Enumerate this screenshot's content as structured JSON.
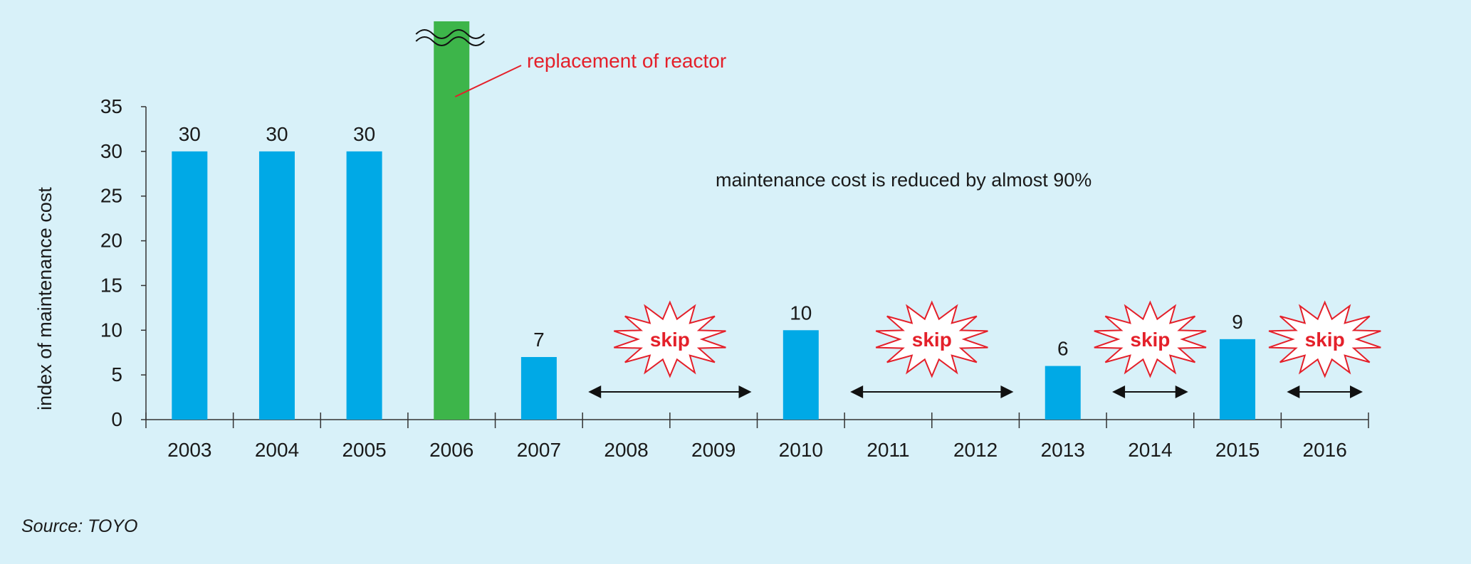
{
  "chart_data": {
    "type": "bar",
    "ylabel": "index of maintenance cost",
    "ylim": [
      0,
      35
    ],
    "yticks": [
      0,
      5,
      10,
      15,
      20,
      25,
      30,
      35
    ],
    "categories": [
      "2003",
      "2004",
      "2005",
      "2006",
      "2007",
      "2008",
      "2009",
      "2010",
      "2011",
      "2012",
      "2013",
      "2014",
      "2015",
      "2016"
    ],
    "values": [
      30,
      30,
      30,
      null,
      7,
      null,
      null,
      10,
      null,
      null,
      6,
      null,
      9,
      null
    ],
    "bar_labels": [
      "30",
      "30",
      "30",
      "",
      "7",
      "",
      "",
      "10",
      "",
      "",
      "6",
      "",
      "9",
      ""
    ],
    "broken_bar": {
      "category": "2006",
      "note": "replacement of reactor",
      "color": "#3db54a"
    },
    "bar_color": "#00a9e6",
    "skip_periods": [
      {
        "label": "skip",
        "from": "2008",
        "to": "2009"
      },
      {
        "label": "skip",
        "from": "2011",
        "to": "2012"
      },
      {
        "label": "skip",
        "from": "2014",
        "to": "2014"
      },
      {
        "label": "skip",
        "from": "2016",
        "to": "2016"
      }
    ],
    "annotation": "maintenance cost is reduced by almost 90%",
    "note_color": "#e4202a"
  },
  "source": "Source: TOYO"
}
